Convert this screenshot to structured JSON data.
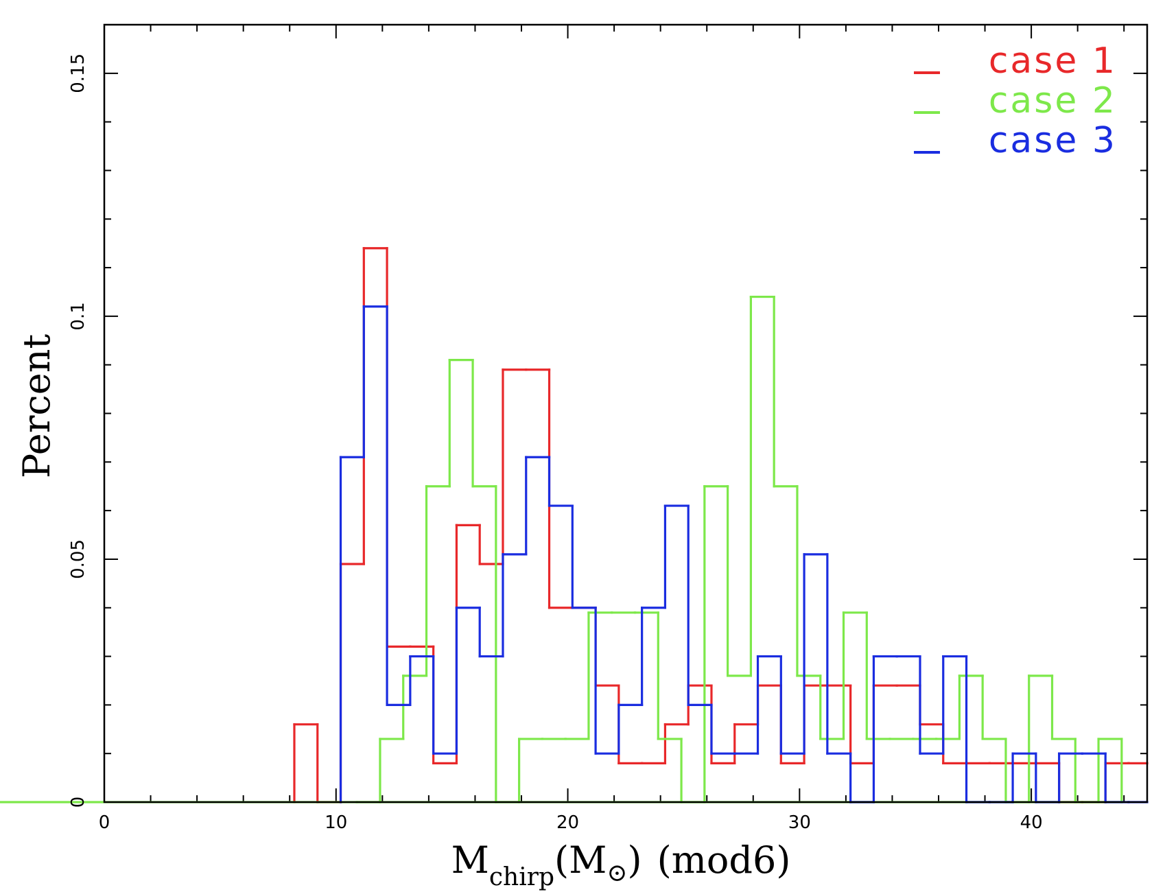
{
  "chart_data": {
    "type": "histogram",
    "title": "",
    "xlabel": {
      "main": "M",
      "sub": "chirp",
      "unit_open": "(M",
      "unit_symbol": "⊙",
      "unit_close": ")",
      "suffix": "(mod6)"
    },
    "ylabel": "Percent",
    "xlim": [
      0,
      45
    ],
    "ylim": [
      0,
      0.16
    ],
    "xticks": [
      0,
      10,
      20,
      30,
      40
    ],
    "xtick_labels": [
      "0",
      "10",
      "20",
      "30",
      "40"
    ],
    "yticks": [
      0,
      0.05,
      0.1,
      0.15
    ],
    "ytick_labels": [
      "0",
      "0.05",
      "0.1",
      "0.15"
    ],
    "bin_edges": [
      8.2,
      9.2,
      10.2,
      11.2,
      12.2,
      13.2,
      14.2,
      15.2,
      16.2,
      17.2,
      18.2,
      19.2,
      20.2,
      21.2,
      22.2,
      23.2,
      24.2,
      25.2,
      26.2,
      27.2,
      28.2,
      29.2,
      30.2,
      31.2,
      32.2,
      33.2,
      34.2,
      35.2,
      36.2,
      37.2,
      38.2,
      39.2,
      40.2,
      41.2,
      42.2,
      43.2,
      44.2,
      45.2
    ],
    "series": [
      {
        "name": "case 1",
        "color": "#e8282a",
        "x": [
          8.2,
          9.2,
          10.2,
          11.2,
          12.2,
          13.2,
          14.2,
          15.2,
          16.2,
          17.2,
          18.2,
          19.2,
          20.2,
          21.2,
          22.2,
          23.2,
          24.2,
          25.2,
          26.2,
          27.2,
          28.2,
          29.2,
          30.2,
          31.2,
          32.2,
          33.2,
          34.2,
          35.2,
          36.2,
          37.2,
          38.2,
          39.2,
          40.2,
          41.2,
          42.2,
          43.2,
          44.2,
          45.2
        ],
        "values": [
          0.016,
          0,
          0.049,
          0.114,
          0.032,
          0.032,
          0.008,
          0.057,
          0.049,
          0.089,
          0.089,
          0.04,
          0.04,
          0.024,
          0.008,
          0.008,
          0.016,
          0.024,
          0.008,
          0.016,
          0.024,
          0.008,
          0.024,
          0.024,
          0.008,
          0.024,
          0.024,
          0.016,
          0.008,
          0.008,
          0.008,
          0.008,
          0.008,
          0,
          0,
          0.008,
          0.008
        ]
      },
      {
        "name": "case 2",
        "color": "#7de84a",
        "x": [
          10.9,
          11.9,
          12.9,
          13.9,
          14.9,
          15.9,
          16.9,
          17.9,
          18.9,
          19.9,
          20.9,
          21.9,
          22.9,
          23.9,
          24.9,
          25.9,
          26.9,
          27.9,
          28.9,
          29.9,
          30.9,
          31.9,
          32.9,
          33.9,
          34.9,
          35.9,
          36.9,
          37.9,
          38.9,
          39.9,
          40.9,
          41.9,
          42.9,
          43.9
        ],
        "values": [
          0,
          0.013,
          0.026,
          0.065,
          0.091,
          0.065,
          0,
          0.013,
          0.013,
          0.013,
          0.039,
          0.039,
          0.039,
          0.013,
          0,
          0.065,
          0.026,
          0.104,
          0.065,
          0.026,
          0.013,
          0.039,
          0.013,
          0.013,
          0.013,
          0.013,
          0.026,
          0.013,
          0,
          0.026,
          0.013,
          0,
          0.013,
          0
        ]
      },
      {
        "name": "case 3",
        "color": "#1a2de0",
        "x": [
          10.2,
          11.2,
          12.2,
          13.2,
          14.2,
          15.2,
          16.2,
          17.2,
          18.2,
          19.2,
          20.2,
          21.2,
          22.2,
          23.2,
          24.2,
          25.2,
          26.2,
          27.2,
          28.2,
          29.2,
          30.2,
          31.2,
          32.2,
          33.2,
          34.2,
          35.2,
          36.2,
          37.2,
          38.2,
          39.2,
          40.2,
          41.2,
          42.2,
          43.2,
          44.2,
          45.2
        ],
        "values": [
          0.071,
          0.102,
          0.02,
          0.03,
          0.01,
          0.04,
          0.03,
          0.051,
          0.071,
          0.061,
          0.04,
          0.01,
          0.02,
          0.04,
          0.061,
          0.02,
          0.01,
          0.01,
          0.03,
          0.01,
          0.051,
          0.01,
          0,
          0.03,
          0.03,
          0.01,
          0.03,
          0,
          0,
          0.01,
          0,
          0.01,
          0.01,
          0,
          0
        ]
      }
    ],
    "legend_position": "top-right"
  }
}
